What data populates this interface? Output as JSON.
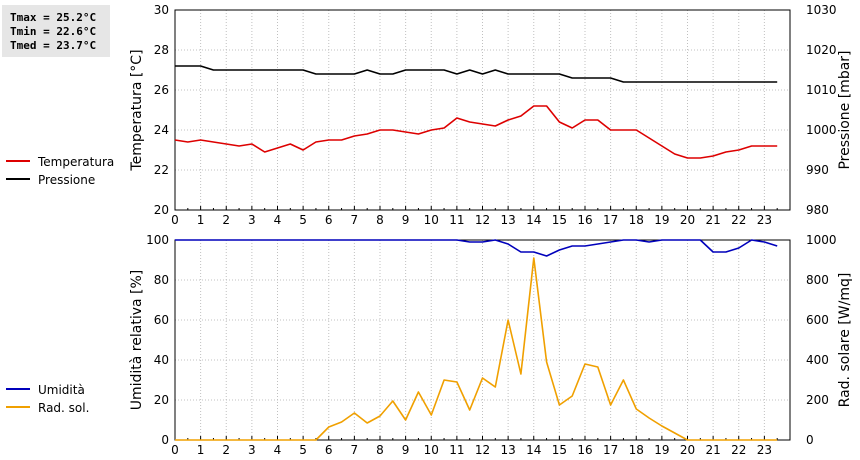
{
  "stats": {
    "tmax": "Tmax = 25.2°C",
    "tmin": "Tmin = 22.6°C",
    "tmed": "Tmed = 23.7°C"
  },
  "colors": {
    "temperature": "#dd0000",
    "pressure": "#000000",
    "humidity": "#0000bb",
    "radiation": "#f0a000",
    "grid": "#c0c0c0"
  },
  "chart_data": [
    {
      "type": "line",
      "x_ticks": [
        "0",
        "1",
        "2",
        "3",
        "4",
        "5",
        "6",
        "7",
        "8",
        "9",
        "10",
        "11",
        "12",
        "13",
        "14",
        "15",
        "16",
        "17",
        "18",
        "19",
        "20",
        "21",
        "22",
        "23"
      ],
      "xlim": [
        0,
        24
      ],
      "ylabel": "Temperatura [°C]",
      "ylim": [
        20,
        30
      ],
      "y_ticks": [
        "20",
        "22",
        "24",
        "26",
        "28",
        "30"
      ],
      "y2label": "Pressione [mbar]",
      "y2lim": [
        980,
        1030
      ],
      "y2_ticks": [
        "980",
        "990",
        "1000",
        "1010",
        "1020",
        "1030"
      ],
      "grid": true,
      "legend_position": "left",
      "series": [
        {
          "name": "Temperatura",
          "axis": "left",
          "x": [
            0,
            0.5,
            1,
            1.5,
            2,
            2.5,
            3,
            3.5,
            4,
            4.5,
            5,
            5.5,
            6,
            6.5,
            7,
            7.5,
            8,
            8.5,
            9,
            9.5,
            10,
            10.5,
            11,
            11.5,
            12,
            12.5,
            13,
            13.5,
            14,
            14.5,
            15,
            15.5,
            16,
            16.5,
            17,
            17.5,
            18,
            18.5,
            19,
            19.5,
            20,
            20.5,
            21,
            21.5,
            22,
            22.5,
            23,
            23.5
          ],
          "values": [
            23.5,
            23.4,
            23.5,
            23.4,
            23.3,
            23.2,
            23.3,
            22.9,
            23.1,
            23.3,
            23.0,
            23.4,
            23.5,
            23.5,
            23.7,
            23.8,
            24.0,
            24.0,
            23.9,
            23.8,
            24.0,
            24.1,
            24.6,
            24.4,
            24.3,
            24.2,
            24.5,
            24.7,
            25.2,
            25.2,
            24.4,
            24.1,
            24.5,
            24.5,
            24.0,
            24.0,
            24.0,
            23.6,
            23.2,
            22.8,
            22.6,
            22.6,
            22.7,
            22.9,
            23.0,
            23.2,
            23.2,
            23.2
          ]
        },
        {
          "name": "Pressione",
          "axis": "right",
          "x": [
            0,
            1,
            1.5,
            2,
            3,
            4,
            5,
            5.5,
            6,
            7,
            7.5,
            8,
            8.5,
            9,
            10,
            10.5,
            11,
            11.5,
            12,
            12.5,
            13,
            14,
            15,
            15.5,
            16,
            17,
            17.5,
            18,
            19,
            20,
            21,
            22,
            23,
            23.5
          ],
          "values": [
            1016,
            1016,
            1015,
            1015,
            1015,
            1015,
            1015,
            1014,
            1014,
            1014,
            1015,
            1014,
            1014,
            1015,
            1015,
            1015,
            1014,
            1015,
            1014,
            1015,
            1014,
            1014,
            1014,
            1013,
            1013,
            1013,
            1012,
            1012,
            1012,
            1012,
            1012,
            1012,
            1012,
            1012
          ]
        }
      ]
    },
    {
      "type": "line",
      "x_ticks": [
        "0",
        "1",
        "2",
        "3",
        "4",
        "5",
        "6",
        "7",
        "8",
        "9",
        "10",
        "11",
        "12",
        "13",
        "14",
        "15",
        "16",
        "17",
        "18",
        "19",
        "20",
        "21",
        "22",
        "23"
      ],
      "xlim": [
        0,
        24
      ],
      "ylabel": "Umidità relativa [%]",
      "ylim": [
        0,
        100
      ],
      "y_ticks": [
        "0",
        "20",
        "40",
        "60",
        "80",
        "100"
      ],
      "y2label": "Rad. solare [W/mq]",
      "y2lim": [
        0,
        1000
      ],
      "y2_ticks": [
        "0",
        "200",
        "400",
        "600",
        "800",
        "1000"
      ],
      "grid": true,
      "legend_position": "left",
      "series": [
        {
          "name": "Umidità",
          "axis": "left",
          "x": [
            0,
            1,
            2,
            3,
            4,
            5,
            6,
            7,
            8,
            9,
            10,
            11,
            11.5,
            12,
            12.5,
            13,
            13.5,
            14,
            14.5,
            15,
            15.5,
            16,
            16.5,
            17,
            17.5,
            18,
            18.5,
            19,
            19.5,
            20,
            20.5,
            21,
            21.5,
            22,
            22.5,
            23,
            23.5
          ],
          "values": [
            100,
            100,
            100,
            100,
            100,
            100,
            100,
            100,
            100,
            100,
            100,
            100,
            99,
            99,
            100,
            98,
            94,
            94,
            92,
            95,
            97,
            97,
            98,
            99,
            100,
            100,
            99,
            100,
            100,
            100,
            100,
            94,
            94,
            96,
            100,
            99,
            97
          ]
        },
        {
          "name": "Rad. sol.",
          "axis": "right",
          "x": [
            0,
            1,
            2,
            3,
            4,
            5,
            5.5,
            6,
            6.5,
            7,
            7.5,
            8,
            8.5,
            9,
            9.5,
            10,
            10.5,
            11,
            11.5,
            12,
            12.5,
            13,
            13.5,
            14,
            14.5,
            15,
            15.5,
            16,
            16.5,
            17,
            17.5,
            18,
            18.5,
            19,
            19.5,
            20,
            21,
            22,
            23,
            23.5
          ],
          "values": [
            0,
            0,
            0,
            0,
            0,
            0,
            0,
            65,
            90,
            135,
            85,
            120,
            195,
            100,
            240,
            125,
            300,
            290,
            150,
            310,
            265,
            600,
            330,
            910,
            390,
            175,
            220,
            380,
            365,
            175,
            300,
            155,
            110,
            70,
            35,
            0,
            0,
            0,
            0,
            0
          ]
        }
      ]
    }
  ]
}
